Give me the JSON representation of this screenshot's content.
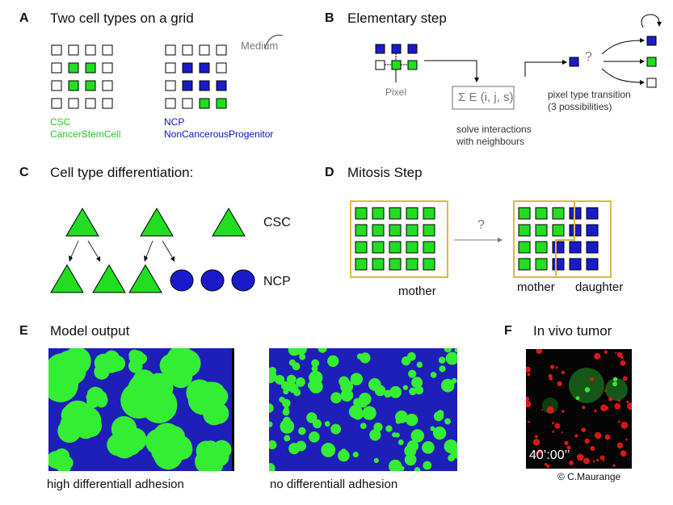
{
  "panels": {
    "a": {
      "letter": "A",
      "title": "Two cell types on a grid",
      "medium": "Medium",
      "csc_abbr": "CSC",
      "csc_full": "CancerStemCell",
      "ncp_abbr": "NCP",
      "ncp_full": "NonCancerousProgenitor"
    },
    "b": {
      "letter": "B",
      "title": "Elementary  step",
      "pixel": "Pixel",
      "energy": "Σ E (i, j, s)",
      "solve1": "solve interactions",
      "solve2": "with neighbours",
      "question": "?",
      "transition1": "pixel type transition",
      "transition2": "(3 possibilities)"
    },
    "c": {
      "letter": "C",
      "title": "Cell type differentiation:",
      "csc": "CSC",
      "ncp": "NCP"
    },
    "d": {
      "letter": "D",
      "title": "Mitosis Step",
      "question": "?",
      "mother1": "mother",
      "mother2": "mother",
      "daughter": "daughter"
    },
    "e": {
      "letter": "E",
      "title": "Model output",
      "caption_high": "high differentiall adhesion",
      "caption_no": "no differentiall adhesion"
    },
    "f": {
      "letter": "F",
      "title": "In vivo tumor",
      "time": "40’:00’’",
      "credit": "© C.Maurange"
    }
  },
  "colors": {
    "csc_green": "#22dd22",
    "ncp_blue": "#1a1acc",
    "frame_gold": "#e0b840",
    "grey": "#777777"
  }
}
